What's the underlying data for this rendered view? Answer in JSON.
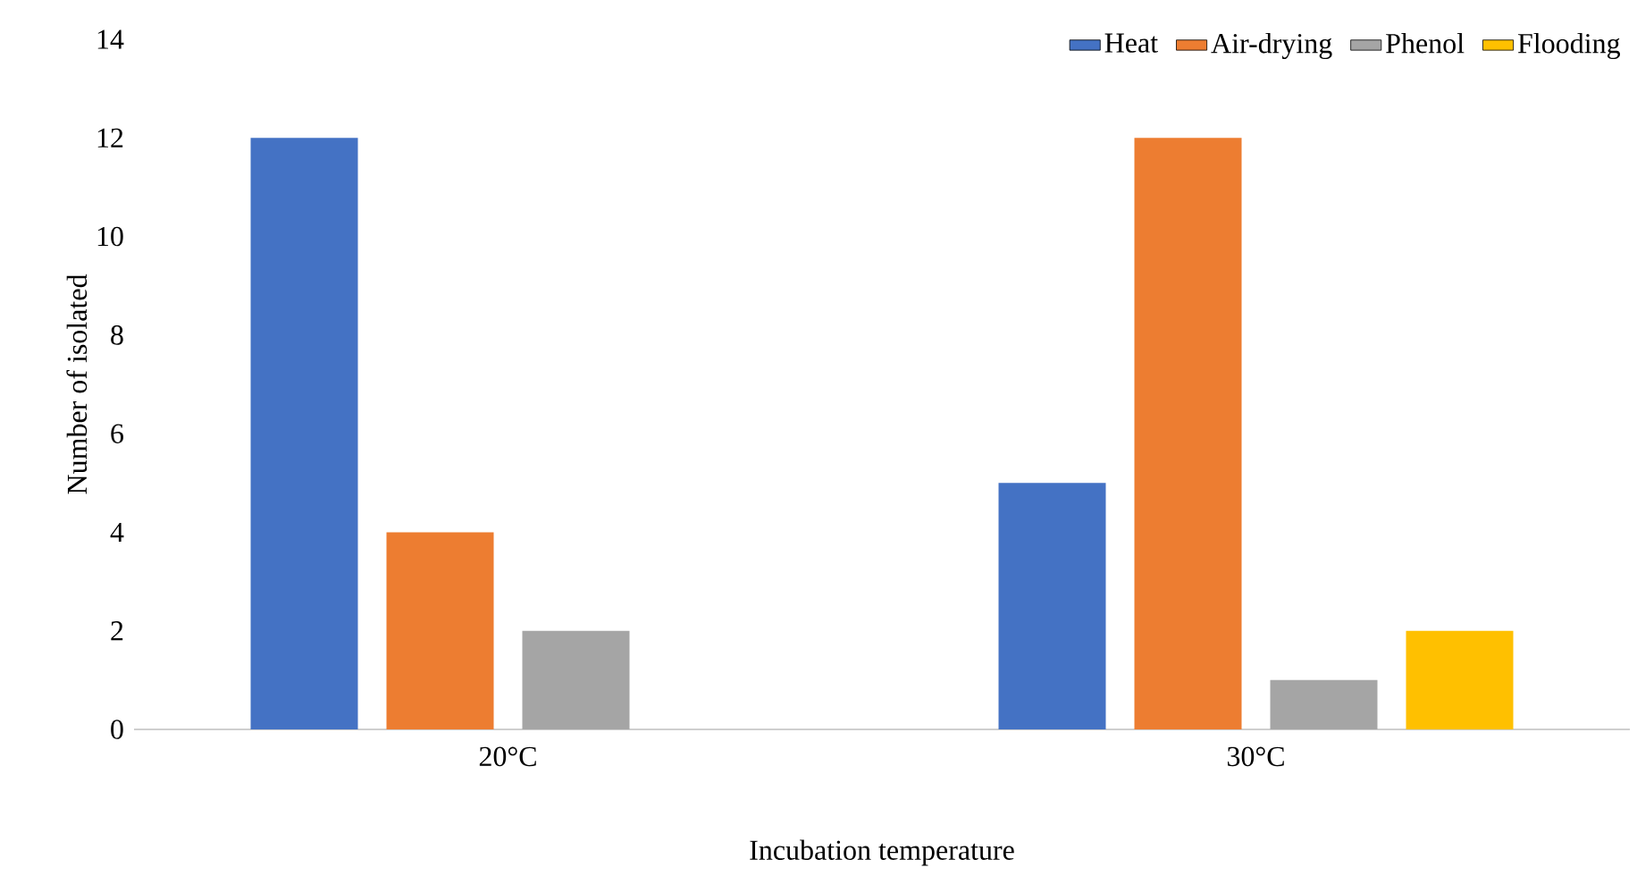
{
  "chart_data": {
    "type": "bar",
    "xlabel": "Incubation temperature",
    "ylabel": "Number of isolated",
    "categories": [
      "20°C",
      "30°C"
    ],
    "series": [
      {
        "name": "Heat",
        "color": "#4472c4",
        "values": [
          12,
          5
        ]
      },
      {
        "name": "Air-drying",
        "color": "#ed7d31",
        "values": [
          4,
          12
        ]
      },
      {
        "name": "Phenol",
        "color": "#a5a5a5",
        "values": [
          2,
          1
        ]
      },
      {
        "name": "Flooding",
        "color": "#ffc000",
        "values": [
          0,
          2
        ]
      }
    ],
    "ylim": [
      0,
      14
    ],
    "yticks": [
      0,
      2,
      4,
      6,
      8,
      10,
      12,
      14
    ],
    "grid": false,
    "legend": "top right"
  }
}
